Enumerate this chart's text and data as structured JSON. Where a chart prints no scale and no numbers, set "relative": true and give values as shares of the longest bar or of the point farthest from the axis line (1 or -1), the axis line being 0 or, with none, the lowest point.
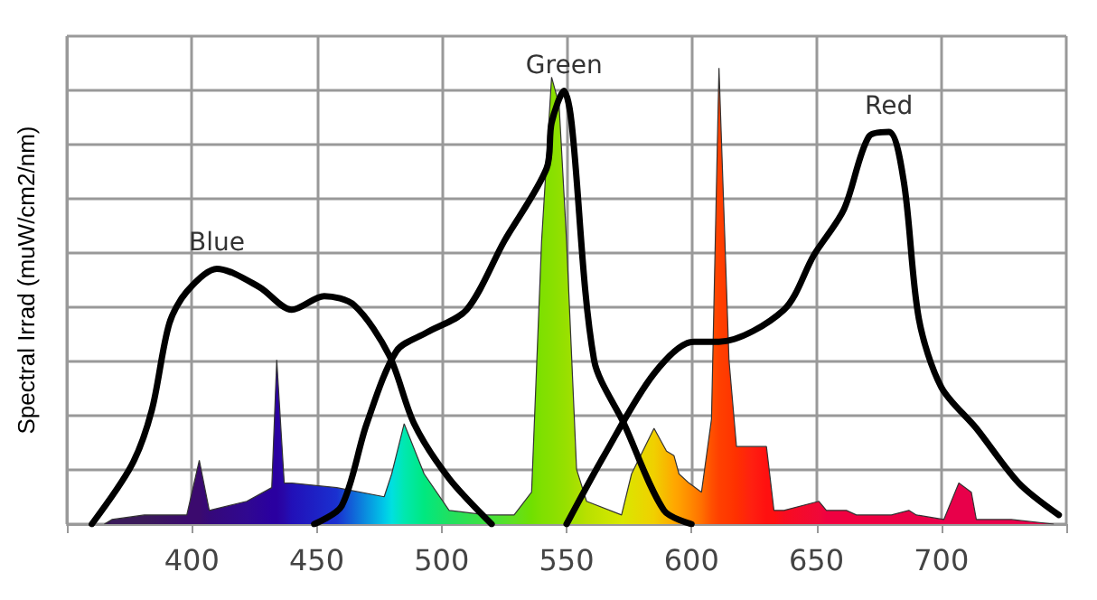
{
  "chart_data": {
    "type": "area",
    "ylabel": "Spectral Irrad (muW/cm2/nm)",
    "relative": true,
    "grid": true,
    "marker": "none",
    "line_style": "solid",
    "xlim": [
      350,
      750
    ],
    "xticks": [
      {
        "value": 350,
        "label": null
      },
      400,
      450,
      500,
      550,
      600,
      650,
      700,
      {
        "value": 750,
        "label": null
      }
    ],
    "series": [
      {
        "x": [
          365,
          368,
          381,
          398,
          403,
          407,
          422,
          432,
          434,
          437,
          440,
          458,
          477,
          480,
          485,
          493,
          503,
          518,
          529,
          536,
          540,
          544,
          547,
          550,
          554,
          558,
          572,
          576,
          585,
          590,
          593,
          595,
          599,
          604,
          608,
          611,
          615,
          618,
          624,
          630,
          633,
          637,
          651,
          654,
          662,
          666,
          680,
          687,
          690,
          701,
          707,
          712,
          714,
          728,
          745
        ],
        "values": [
          0,
          0.01,
          0.02,
          0.02,
          0.14,
          0.03,
          0.05,
          0.08,
          0.36,
          0.09,
          0.09,
          0.08,
          0.06,
          0.11,
          0.22,
          0.11,
          0.03,
          0.02,
          0.02,
          0.07,
          0.62,
          0.98,
          0.92,
          0.62,
          0.12,
          0.05,
          0.02,
          0.11,
          0.21,
          0.16,
          0.15,
          0.11,
          0.09,
          0.07,
          0.23,
          1,
          0.36,
          0.17,
          0.17,
          0.17,
          0.03,
          0.03,
          0.05,
          0.03,
          0.03,
          0.02,
          0.02,
          0.03,
          0.02,
          0.01,
          0.09,
          0.07,
          0.01,
          0.01,
          0
        ],
        "colors": [
          "#2a1040",
          "#3a1a5a",
          "#3a1a5a",
          "#3b0a6e",
          "#3b0a6e",
          "#35087a",
          "#300890",
          "#2a00a0",
          "#2a00a0",
          "#2808a8",
          "#2210b8",
          "#1a30d0",
          "#00c8e8",
          "#00e0e0",
          "#00e8b0",
          "#00e880",
          "#20e060",
          "#40e040",
          "#60e020",
          "#70e000",
          "#7fe000",
          "#88e000",
          "#90e000",
          "#98e000",
          "#a8e000",
          "#b8e000",
          "#d8e800",
          "#e0e000",
          "#f0d000",
          "#f8b800",
          "#ffa800",
          "#ffa000",
          "#ff8c00",
          "#ff7000",
          "#ff5000",
          "#ff4000",
          "#ff3800",
          "#ff3000",
          "#ff2010",
          "#ff1010",
          "#ff1010",
          "#f80c20",
          "#f00838",
          "#f00040",
          "#f00040",
          "#f00040",
          "#ec0044",
          "#ea0046",
          "#ea0046",
          "#e8004a",
          "#e8004a",
          "#e8004a",
          "#e8004a",
          "#e8004a",
          "#e8004a"
        ]
      },
      {
        "type": "line",
        "name": "Blue",
        "color": "#000000",
        "x": [
          360,
          376,
          384,
          391,
          398,
          410,
          427,
          440,
          453,
          465,
          479,
          489,
          503,
          520
        ],
        "values": [
          0,
          0.13,
          0.25,
          0.44,
          0.51,
          0.56,
          0.52,
          0.47,
          0.5,
          0.48,
          0.37,
          0.22,
          0.1,
          0
        ]
      },
      {
        "type": "line",
        "name": "Green",
        "color": "#000000",
        "x": [
          449,
          460,
          470,
          482,
          494,
          510,
          525,
          542,
          544,
          549,
          552,
          561,
          573,
          589,
          600
        ],
        "values": [
          0,
          0.04,
          0.22,
          0.38,
          0.42,
          0.47,
          0.62,
          0.78,
          0.88,
          0.95,
          0.88,
          0.36,
          0.22,
          0.03,
          0
        ]
      },
      {
        "type": "line",
        "name": "Red",
        "color": "#000000",
        "x": [
          550,
          565,
          585,
          601,
          611,
          637,
          649,
          661,
          671,
          679,
          685,
          691,
          700,
          714,
          731,
          747
        ],
        "values": [
          0,
          0.15,
          0.33,
          0.4,
          0.4,
          0.47,
          0.59,
          0.69,
          0.85,
          0.86,
          0.75,
          0.45,
          0.3,
          0.21,
          0.09,
          0.02
        ]
      }
    ]
  }
}
